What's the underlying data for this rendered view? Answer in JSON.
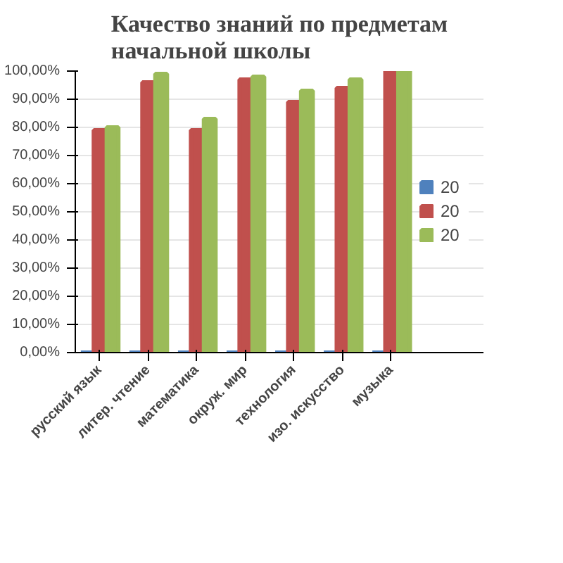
{
  "chart_data": {
    "type": "bar",
    "title": "Качество знаний по предметам\nначальной школы",
    "categories": [
      "русский язык",
      "литер. чтение",
      "математика",
      "окруж. мир",
      "технология",
      "изо. искусство",
      "музыка"
    ],
    "series": [
      {
        "name": "20",
        "color": "#4f81bd",
        "values": [
          0,
          0,
          0,
          0,
          0,
          0,
          0
        ]
      },
      {
        "name": "20",
        "color": "#c0504d",
        "values": [
          79,
          96,
          79,
          97,
          89,
          94,
          100
        ]
      },
      {
        "name": "20",
        "color": "#9bbb59",
        "values": [
          80,
          99,
          83,
          98,
          93,
          97,
          100
        ]
      }
    ],
    "ylim": [
      0,
      100
    ],
    "yticks": [
      {
        "value": 0,
        "label": "0,00%"
      },
      {
        "value": 10,
        "label": "10,00%"
      },
      {
        "value": 20,
        "label": "20,00%"
      },
      {
        "value": 30,
        "label": "30,00%"
      },
      {
        "value": 40,
        "label": "40,00%"
      },
      {
        "value": 50,
        "label": "50,00%"
      },
      {
        "value": 60,
        "label": "60,00%"
      },
      {
        "value": 70,
        "label": "70,00%"
      },
      {
        "value": 80,
        "label": "80,00%"
      },
      {
        "value": 90,
        "label": "90,00%"
      },
      {
        "value": 100,
        "label": "100,00%"
      }
    ],
    "grid": "y",
    "legend": "right"
  }
}
